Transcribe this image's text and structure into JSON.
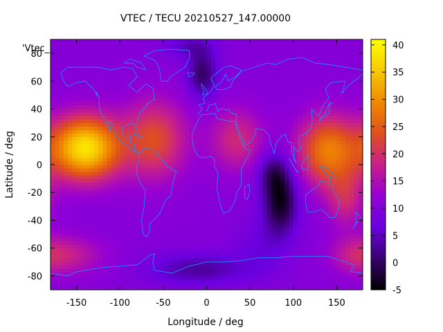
{
  "chart_data": {
    "type": "heatmap",
    "title": "VTEC / TECU 20210527_147.00000",
    "xlabel": "Longitude / deg",
    "ylabel": "Latitude / deg",
    "series_label": "'Vtec_",
    "xlim": [
      -180,
      180
    ],
    "ylim": [
      -90,
      90
    ],
    "x_ticks": [
      -150,
      -100,
      -50,
      0,
      50,
      100,
      150
    ],
    "y_ticks": [
      -80,
      -60,
      -40,
      -20,
      0,
      20,
      40,
      60,
      80
    ],
    "colorbar": {
      "range": [
        -5,
        41
      ],
      "ticks": [
        -5,
        0,
        5,
        10,
        15,
        20,
        25,
        30,
        35,
        40
      ],
      "palette": [
        "#000000",
        "#3a0070",
        "#6a00e0",
        "#9600d2",
        "#c8208a",
        "#e0501c",
        "#f08a00",
        "#f8c800",
        "#ffff00"
      ]
    },
    "field_model": {
      "background_tecu": 10,
      "blobs": [
        {
          "lon": -140,
          "lat": 12,
          "slon": 28,
          "slat": 16,
          "tecu": 28
        },
        {
          "lon": -60,
          "lat": 18,
          "slon": 26,
          "slat": 20,
          "tecu": 13
        },
        {
          "lon": 35,
          "lat": 18,
          "slon": 22,
          "slat": 16,
          "tecu": 9
        },
        {
          "lon": 140,
          "lat": 10,
          "slon": 25,
          "slat": 18,
          "tecu": 18
        },
        {
          "lon": 160,
          "lat": -25,
          "slon": 15,
          "slat": 14,
          "tecu": 8
        },
        {
          "lon": -160,
          "lat": -65,
          "slon": 30,
          "slat": 10,
          "tecu": 7
        },
        {
          "lon": 170,
          "lat": -65,
          "slon": 20,
          "slat": 10,
          "tecu": 5
        },
        {
          "lon": 85,
          "lat": -25,
          "slon": 14,
          "slat": 18,
          "tecu": -14
        },
        {
          "lon": 75,
          "lat": -5,
          "slon": 12,
          "slat": 10,
          "tecu": -6
        },
        {
          "lon": -5,
          "lat": 65,
          "slon": 12,
          "slat": 12,
          "tecu": -10
        },
        {
          "lon": -20,
          "lat": 85,
          "slon": 20,
          "slat": 6,
          "tecu": -5
        },
        {
          "lon": -10,
          "lat": -75,
          "slon": 40,
          "slat": 8,
          "tecu": -7
        },
        {
          "lon": 60,
          "lat": -60,
          "slon": 20,
          "slat": 14,
          "tecu": -3
        }
      ]
    },
    "coastline_color": "#1f8fff"
  }
}
